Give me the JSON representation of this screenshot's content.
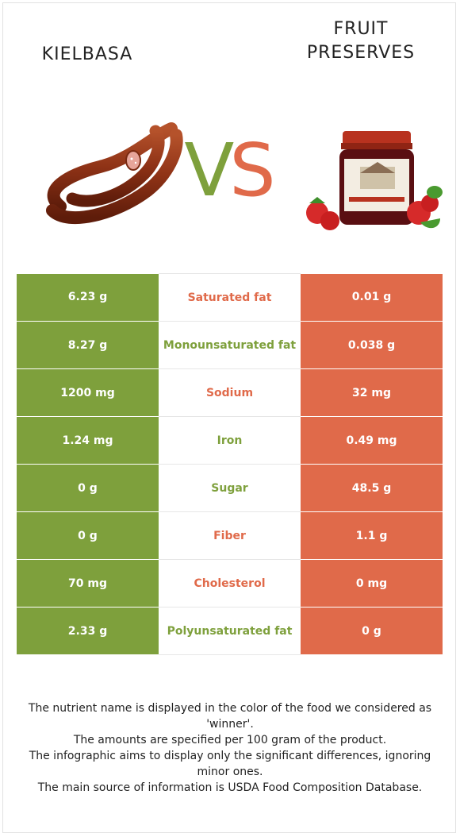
{
  "left_food": {
    "title": "KIELBASA",
    "color": "#7ea03c"
  },
  "right_food": {
    "title": "FRUIT\nPRESERVES",
    "color": "#e06a4a"
  },
  "vs": {
    "v": "V",
    "s": "S"
  },
  "rows": [
    {
      "nutrient": "Saturated fat",
      "left": "6.23 g",
      "right": "0.01 g",
      "winner": "right"
    },
    {
      "nutrient": "Monounsaturated fat",
      "left": "8.27 g",
      "right": "0.038 g",
      "winner": "left"
    },
    {
      "nutrient": "Sodium",
      "left": "1200 mg",
      "right": "32 mg",
      "winner": "right"
    },
    {
      "nutrient": "Iron",
      "left": "1.24 mg",
      "right": "0.49 mg",
      "winner": "left"
    },
    {
      "nutrient": "Sugar",
      "left": "0 g",
      "right": "48.5 g",
      "winner": "left"
    },
    {
      "nutrient": "Fiber",
      "left": "0 g",
      "right": "1.1 g",
      "winner": "right"
    },
    {
      "nutrient": "Cholesterol",
      "left": "70 mg",
      "right": "0 mg",
      "winner": "right"
    },
    {
      "nutrient": "Polyunsaturated fat",
      "left": "2.33 g",
      "right": "0 g",
      "winner": "left"
    }
  ],
  "notes": [
    "The nutrient name is displayed in the color of the food we considered as 'winner'.",
    "The amounts are specified per 100 gram of the product.",
    "The infographic aims to display only the significant differences, ignoring minor ones.",
    "The main source of information is USDA Food Composition Database."
  ]
}
